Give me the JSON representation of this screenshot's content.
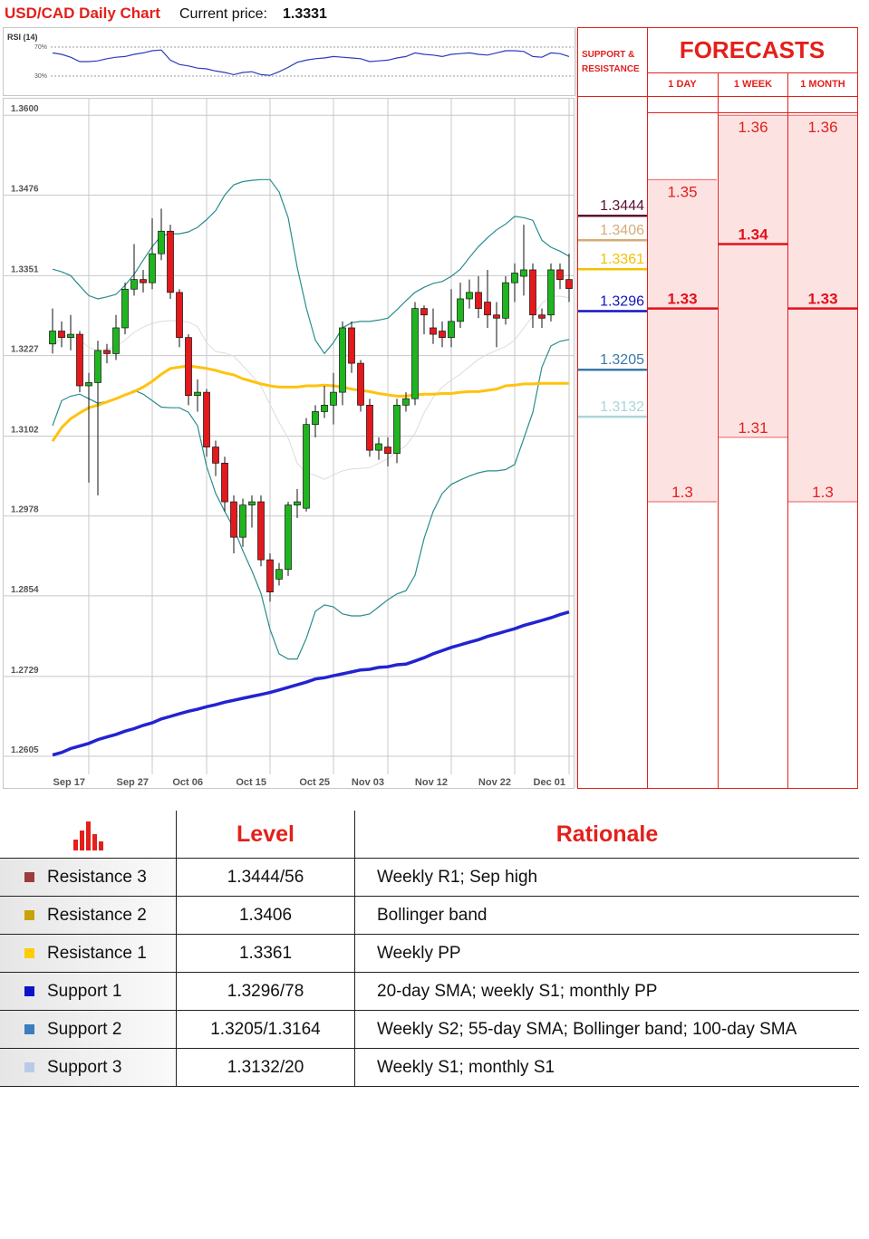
{
  "header": {
    "title": "USD/CAD Daily Chart",
    "price_label": "Current price:",
    "price": 1.3331
  },
  "chart_data": [
    {
      "type": "candlestick",
      "categories": [
        null,
        null,
        null,
        null,
        "Sep 17",
        null,
        null,
        null,
        null,
        null,
        null,
        "Sep 27",
        null,
        null,
        null,
        null,
        null,
        "Oct 06",
        null,
        null,
        null,
        null,
        null,
        null,
        "Oct 15",
        null,
        null,
        null,
        null,
        null,
        null,
        "Oct 25",
        null,
        null,
        null,
        null,
        null,
        "Nov 03",
        null,
        null,
        null,
        null,
        null,
        null,
        "Nov 12",
        null,
        null,
        null,
        null,
        null,
        null,
        "Nov 22",
        null,
        null,
        null,
        null,
        null,
        "Dec 01"
      ],
      "open": [
        1.3245,
        1.3265,
        1.3255,
        1.326,
        1.318,
        1.3185,
        1.3235,
        1.323,
        1.327,
        1.333,
        1.3345,
        1.334,
        1.3385,
        1.342,
        1.3325,
        1.3255,
        1.3165,
        1.317,
        1.3085,
        1.306,
        1.3,
        1.2945,
        1.2995,
        1.3,
        1.291,
        1.288,
        1.2895,
        1.2995,
        1.299,
        1.312,
        1.314,
        1.315,
        1.317,
        1.327,
        1.3215,
        1.315,
        1.308,
        1.3085,
        1.3075,
        1.315,
        1.316,
        1.33,
        1.327,
        1.3265,
        1.3255,
        1.328,
        1.3315,
        1.3325,
        1.331,
        1.329,
        1.3285,
        1.334,
        1.335,
        1.336,
        1.329,
        1.329,
        1.336,
        1.3345
      ],
      "high": [
        1.33,
        1.328,
        1.329,
        1.3265,
        1.32,
        1.325,
        1.3245,
        1.329,
        1.334,
        1.34,
        1.336,
        1.344,
        1.3455,
        1.343,
        1.333,
        1.326,
        1.319,
        1.3175,
        1.3095,
        1.307,
        1.301,
        1.3005,
        1.301,
        1.301,
        1.292,
        1.2905,
        1.3,
        1.302,
        1.313,
        1.315,
        1.318,
        1.32,
        1.328,
        1.328,
        1.322,
        1.316,
        1.31,
        1.31,
        1.316,
        1.317,
        1.331,
        1.3305,
        1.33,
        1.328,
        1.333,
        1.334,
        1.3345,
        1.335,
        1.336,
        1.331,
        1.335,
        1.337,
        1.343,
        1.337,
        1.33,
        1.337,
        1.337,
        1.3385
      ],
      "low": [
        1.323,
        1.324,
        1.3235,
        1.317,
        1.303,
        1.301,
        1.3215,
        1.322,
        1.326,
        1.332,
        1.3325,
        1.333,
        1.3375,
        1.3315,
        1.324,
        1.315,
        1.314,
        1.307,
        1.304,
        1.2985,
        1.292,
        1.293,
        1.296,
        1.29,
        1.2845,
        1.287,
        1.2885,
        1.2975,
        1.2985,
        1.31,
        1.313,
        1.312,
        1.315,
        1.32,
        1.314,
        1.307,
        1.3065,
        1.3055,
        1.306,
        1.314,
        1.315,
        1.326,
        1.3245,
        1.324,
        1.324,
        1.327,
        1.33,
        1.3285,
        1.327,
        1.324,
        1.3275,
        1.331,
        1.332,
        1.327,
        1.327,
        1.328,
        1.333,
        1.331
      ],
      "close": [
        1.3265,
        1.3255,
        1.326,
        1.318,
        1.3185,
        1.3235,
        1.323,
        1.327,
        1.333,
        1.3345,
        1.334,
        1.3385,
        1.342,
        1.3325,
        1.3255,
        1.3165,
        1.317,
        1.3085,
        1.306,
        1.3,
        1.2945,
        1.2995,
        1.3,
        1.291,
        1.286,
        1.2895,
        1.2995,
        1.3,
        1.312,
        1.314,
        1.315,
        1.317,
        1.327,
        1.3215,
        1.315,
        1.308,
        1.309,
        1.3075,
        1.315,
        1.316,
        1.33,
        1.329,
        1.326,
        1.3255,
        1.328,
        1.3315,
        1.3325,
        1.33,
        1.329,
        1.3285,
        1.334,
        1.3355,
        1.336,
        1.329,
        1.3285,
        1.336,
        1.3345,
        1.3331
      ],
      "up_color": "#1fb51f",
      "down_color": "#e3191c",
      "series": [
        {
          "color": "#dcdcdc",
          "values": [
            1.324,
            1.3257,
            1.3258,
            1.3251,
            1.324,
            1.3234,
            1.3237,
            1.3241,
            1.3251,
            1.3263,
            1.3271,
            1.3277,
            1.328,
            1.3281,
            1.3281,
            1.3279,
            1.3272,
            1.3247,
            1.3233,
            1.3231,
            1.3226,
            1.3211,
            1.3196,
            1.3179,
            1.3151,
            1.3123,
            1.3099,
            1.306,
            1.3045,
            1.3041,
            1.3035,
            1.3042,
            1.3048,
            1.3051,
            1.3052,
            1.3053,
            1.306,
            1.3067,
            1.3078,
            1.3087,
            1.3106,
            1.3138,
            1.3162,
            1.3178,
            1.3189,
            1.3198,
            1.321,
            1.3221,
            1.3229,
            1.3235,
            1.3241,
            1.3251,
            1.327,
            1.3288,
            1.3308,
            1.3319,
            1.3319,
            1.3317
          ]
        },
        {
          "color": "#2a8c8c",
          "values": [
            1.3361,
            1.3357,
            1.3351,
            1.3335,
            1.332,
            1.3315,
            1.3318,
            1.3322,
            1.3336,
            1.3353,
            1.3375,
            1.3396,
            1.3413,
            1.3416,
            1.3416,
            1.3419,
            1.3426,
            1.3438,
            1.3452,
            1.3476,
            1.3492,
            1.3497,
            1.3499,
            1.35,
            1.35,
            1.3481,
            1.3441,
            1.3364,
            1.3301,
            1.3251,
            1.323,
            1.3247,
            1.327,
            1.3278,
            1.328,
            1.328,
            1.3282,
            1.3285,
            1.3298,
            1.3312,
            1.3325,
            1.3333,
            1.3339,
            1.3342,
            1.335,
            1.3361,
            1.3379,
            1.3396,
            1.341,
            1.3422,
            1.3431,
            1.3443,
            1.3441,
            1.3437,
            1.3406,
            1.3395,
            1.3389,
            1.3381
          ]
        },
        {
          "color": "#2a8c8c",
          "values": [
            1.3118,
            1.3157,
            1.3164,
            1.3167,
            1.316,
            1.3153,
            1.3156,
            1.316,
            1.3166,
            1.3173,
            1.3167,
            1.3157,
            1.3147,
            1.3146,
            1.3146,
            1.3139,
            1.3118,
            1.3055,
            1.3013,
            1.2985,
            1.2959,
            1.2924,
            1.2893,
            1.2858,
            1.2802,
            1.2764,
            1.2756,
            1.2756,
            1.2788,
            1.283,
            1.284,
            1.2837,
            1.2826,
            1.2823,
            1.2823,
            1.2826,
            1.2837,
            1.2848,
            1.2857,
            1.2862,
            1.2886,
            1.2943,
            1.2985,
            1.3013,
            1.3027,
            1.3034,
            1.304,
            1.3045,
            1.3048,
            1.3048,
            1.305,
            1.3058,
            1.3098,
            1.3139,
            1.3209,
            1.3242,
            1.3249,
            1.3252
          ]
        },
        {
          "color": "#ffc20e",
          "values": [
            1.3094,
            1.3115,
            1.3129,
            1.3138,
            1.3146,
            1.315,
            1.3155,
            1.316,
            1.3166,
            1.3171,
            1.3178,
            1.3187,
            1.3198,
            1.3207,
            1.3209,
            1.3211,
            1.3209,
            1.3207,
            1.3204,
            1.32,
            1.3197,
            1.3191,
            1.3187,
            1.3183,
            1.318,
            1.3178,
            1.3178,
            1.3178,
            1.318,
            1.318,
            1.3181,
            1.318,
            1.3178,
            1.3175,
            1.3173,
            1.3171,
            1.3168,
            1.3166,
            1.3164,
            1.3164,
            1.3166,
            1.3167,
            1.3167,
            1.3168,
            1.3168,
            1.317,
            1.3171,
            1.3171,
            1.3173,
            1.3175,
            1.318,
            1.3181,
            1.3183,
            1.3183,
            1.3184,
            1.3184,
            1.3184,
            1.3184
          ]
        },
        {
          "color": "#2323d2",
          "values": [
            1.2607,
            1.2611,
            1.2617,
            1.2621,
            1.2625,
            1.2631,
            1.2635,
            1.2639,
            1.2644,
            1.2648,
            1.2653,
            1.2657,
            1.2663,
            1.2667,
            1.2671,
            1.2675,
            1.2678,
            1.2682,
            1.2685,
            1.2689,
            1.2692,
            1.2695,
            1.2698,
            1.2701,
            1.2704,
            1.2708,
            1.2712,
            1.2716,
            1.272,
            1.2725,
            1.2727,
            1.273,
            1.2733,
            1.2736,
            1.2739,
            1.274,
            1.2743,
            1.2744,
            1.2747,
            1.2748,
            1.2753,
            1.2758,
            1.2764,
            1.2769,
            1.2774,
            1.2778,
            1.2782,
            1.2786,
            1.2791,
            1.2795,
            1.2799,
            1.2803,
            1.2808,
            1.2812,
            1.2816,
            1.282,
            1.2825,
            1.2829
          ]
        }
      ],
      "ylim": [
        1.2584,
        1.3627
      ],
      "yticks": [
        {
          "value": 1.36,
          "label": "1.3600"
        },
        1.3476,
        1.3351,
        1.3227,
        1.3102,
        1.2978,
        1.2854,
        1.2729,
        1.2605
      ],
      "grid": true
    },
    {
      "type": "line",
      "title": "RSI (14)",
      "values": [
        62,
        60,
        56,
        50,
        50,
        51,
        54,
        56,
        57,
        60,
        62,
        65,
        66,
        52,
        46,
        44,
        41,
        40,
        37,
        35,
        32,
        35,
        36,
        32,
        31,
        36,
        42,
        49,
        52,
        54,
        55,
        57,
        56,
        55,
        54,
        50,
        51,
        52,
        55,
        57,
        62,
        60,
        59,
        57,
        60,
        61,
        62,
        60,
        59,
        62,
        65,
        65,
        64,
        57,
        56,
        62,
        61,
        57
      ],
      "color": "#2b3bbf",
      "ylim": [
        0,
        100
      ],
      "yticks": [
        {
          "value": 70,
          "label": "70%"
        },
        {
          "value": 30,
          "label": "30%"
        }
      ]
    }
  ],
  "support_resistance": {
    "title": "SUPPORT & RESISTANCE",
    "levels": [
      {
        "value": 1.3444,
        "color": "#5c1030"
      },
      {
        "value": 1.3406,
        "color": "#d4ac78"
      },
      {
        "value": 1.3361,
        "color": "#f2c200"
      },
      {
        "value": 1.3296,
        "color": "#1212c0"
      },
      {
        "value": 1.3205,
        "color": "#3a78a8"
      },
      {
        "value": 1.3132,
        "color": "#a8d6da"
      }
    ]
  },
  "forecasts": {
    "title": "FORECASTS",
    "columns": [
      {
        "label": "1 DAY",
        "high": 1.35,
        "mid": 1.33,
        "low": 1.3
      },
      {
        "label": "1 WEEK",
        "high": 1.36,
        "mid": 1.34,
        "low": 1.31
      },
      {
        "label": "1 MONTH",
        "high": 1.36,
        "mid": 1.33,
        "low": 1.3
      }
    ]
  },
  "table": {
    "headers": [
      "Level",
      "Rationale"
    ],
    "rows": [
      {
        "color": "#9e3b3b",
        "name": "Resistance 3",
        "level": "1.3444/56",
        "rationale": "Weekly R1; Sep high"
      },
      {
        "color": "#c9a20a",
        "name": "Resistance 2",
        "level": "1.3406",
        "rationale": "Bollinger band"
      },
      {
        "color": "#ffcc00",
        "name": "Resistance 1",
        "level": "1.3361",
        "rationale": "Weekly PP"
      },
      {
        "color": "#0a14c8",
        "name": "Support 1",
        "level": "1.3296/78",
        "rationale": "20-day SMA; weekly S1; monthly PP"
      },
      {
        "color": "#3b7dc0",
        "name": "Support 2",
        "level": "1.3205/1.3164",
        "rationale": "Weekly S2; 55-day SMA; Bollinger band; 100-day SMA"
      },
      {
        "color": "#b7cbe8",
        "name": "Support 3",
        "level": "1.3132/20",
        "rationale": "Weekly S1; monthly S1"
      }
    ]
  }
}
